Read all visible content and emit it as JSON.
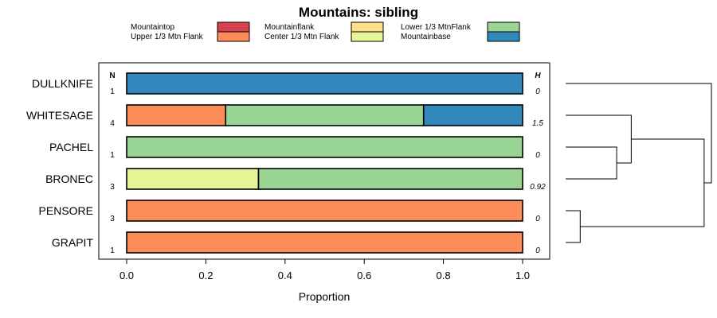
{
  "chart_data": {
    "type": "bar",
    "orientation": "horizontal",
    "stacked": true,
    "title": "Mountains: sibling",
    "xlabel": "Proportion",
    "ylabel": "",
    "xlim": [
      0,
      1
    ],
    "xticks": [
      0.0,
      0.2,
      0.4,
      0.6,
      0.8,
      1.0
    ],
    "xtick_labels": [
      "0.0",
      "0.2",
      "0.4",
      "0.6",
      "0.8",
      "1.0"
    ],
    "n_header": "N",
    "h_header": "H",
    "legend": [
      {
        "name": "Mountaintop",
        "color": "#d7404f"
      },
      {
        "name": "Upper 1/3 Mtn Flank",
        "color": "#fc8d59"
      },
      {
        "name": "Mountainflank",
        "color": "#fee08b"
      },
      {
        "name": "Center 1/3 Mtn Flank",
        "color": "#e6f598"
      },
      {
        "name": "Lower 1/3 MtnFlank",
        "color": "#99d594"
      },
      {
        "name": "Mountainbase",
        "color": "#3288bd"
      }
    ],
    "rows": [
      {
        "label": "DULLKNIFE",
        "n": "1",
        "h": "0",
        "segments": [
          {
            "category": "Mountainbase",
            "value": 1.0
          }
        ]
      },
      {
        "label": "WHITESAGE",
        "n": "4",
        "h": "1.5",
        "segments": [
          {
            "category": "Upper 1/3 Mtn Flank",
            "value": 0.25
          },
          {
            "category": "Lower 1/3 MtnFlank",
            "value": 0.5
          },
          {
            "category": "Mountainbase",
            "value": 0.25
          }
        ]
      },
      {
        "label": "PACHEL",
        "n": "1",
        "h": "0",
        "segments": [
          {
            "category": "Lower 1/3 MtnFlank",
            "value": 1.0
          }
        ]
      },
      {
        "label": "BRONEC",
        "n": "3",
        "h": "0.92",
        "segments": [
          {
            "category": "Center 1/3 Mtn Flank",
            "value": 0.333
          },
          {
            "category": "Lower 1/3 MtnFlank",
            "value": 0.667
          }
        ]
      },
      {
        "label": "PENSORE",
        "n": "3",
        "h": "0",
        "segments": [
          {
            "category": "Upper 1/3 Mtn Flank",
            "value": 1.0
          }
        ]
      },
      {
        "label": "GRAPIT",
        "n": "1",
        "h": "0",
        "segments": [
          {
            "category": "Upper 1/3 Mtn Flank",
            "value": 1.0
          }
        ]
      }
    ],
    "dendrogram": {
      "merges": [
        {
          "a": "PENSORE",
          "b": "GRAPIT",
          "height": 0.1
        },
        {
          "a": "PACHEL",
          "b": "BRONEC",
          "height": 0.35
        },
        {
          "a": "WHITESAGE",
          "b": "PACHEL+BRONEC",
          "height": 0.45
        },
        {
          "a": "WHITESAGE+PACHEL+BRONEC",
          "b": "PENSORE+GRAPIT",
          "height": 0.95
        },
        {
          "a": "DULLKNIFE",
          "b": "rest",
          "height": 1.0
        }
      ]
    }
  }
}
